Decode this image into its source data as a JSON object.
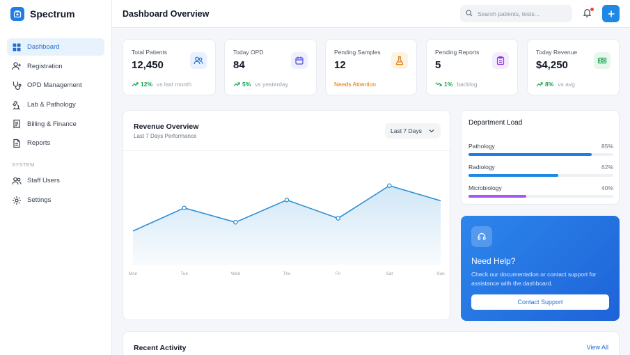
{
  "app": {
    "name": "Spectrum"
  },
  "sidebar": {
    "items": [
      {
        "label": "Dashboard",
        "icon": "grid-icon"
      },
      {
        "label": "Registration",
        "icon": "user-plus-icon"
      },
      {
        "label": "OPD Management",
        "icon": "stethoscope-icon"
      },
      {
        "label": "Lab & Pathology",
        "icon": "microscope-icon"
      },
      {
        "label": "Billing & Finance",
        "icon": "receipt-icon"
      },
      {
        "label": "Reports",
        "icon": "document-icon"
      }
    ],
    "section_label": "SYSTEM",
    "system_items": [
      {
        "label": "Staff Users",
        "icon": "users-icon"
      },
      {
        "label": "Settings",
        "icon": "gear-icon"
      }
    ]
  },
  "header": {
    "title": "Dashboard Overview",
    "search_placeholder": "Search patients, tests..."
  },
  "stats": [
    {
      "label": "Total Patients",
      "value": "12,450",
      "trend": "12%",
      "note": "vs last month",
      "direction": "up",
      "icon": "users-icon",
      "accent": "#e8f1fd"
    },
    {
      "label": "Today OPD",
      "value": "84",
      "trend": "5%",
      "note": "vs yesterday",
      "direction": "up",
      "icon": "calendar-icon",
      "accent": "#eef0fd"
    },
    {
      "label": "Pending Samples",
      "value": "12",
      "warning": "Needs Attention",
      "icon": "flask-icon",
      "accent": "#fdf3e3"
    },
    {
      "label": "Pending Reports",
      "value": "5",
      "trend": "1%",
      "note": "backlog",
      "direction": "down",
      "icon": "clipboard-icon",
      "accent": "#f4edfd"
    },
    {
      "label": "Today Revenue",
      "value": "$4,250",
      "trend": "8%",
      "note": "vs avg",
      "direction": "up",
      "icon": "cash-icon",
      "accent": "#e7f7ee"
    }
  ],
  "revenue": {
    "title": "Revenue Overview",
    "subtitle": "Last 7 Days Performance",
    "range": "Last 7 Days"
  },
  "chart_data": {
    "type": "area",
    "categories": [
      "Mon",
      "Tue",
      "Wed",
      "Thu",
      "Fri",
      "Sat",
      "Sun"
    ],
    "values": [
      43,
      72,
      54,
      82,
      59,
      100,
      81
    ],
    "ylim": [
      0,
      140
    ],
    "title": "",
    "xlabel": "",
    "ylabel": "",
    "color": "#2b8fd6",
    "grid": false
  },
  "department": {
    "title": "Department Load",
    "items": [
      {
        "name": "Pathology",
        "pct_label": "85%",
        "value": 0.85,
        "color": "#1e7de6"
      },
      {
        "name": "Radiology",
        "pct_label": "62%",
        "value": 0.62,
        "color": "#1e88e5"
      },
      {
        "name": "Microbiology",
        "pct_label": "40%",
        "value": 0.4,
        "color": "#a855f7"
      }
    ]
  },
  "help": {
    "title": "Need Help?",
    "text": "Check our documentation or contact support for assistance with the dashboard.",
    "button": "Contact Support"
  },
  "recent": {
    "title": "Recent Activity",
    "view_all": "View All"
  }
}
